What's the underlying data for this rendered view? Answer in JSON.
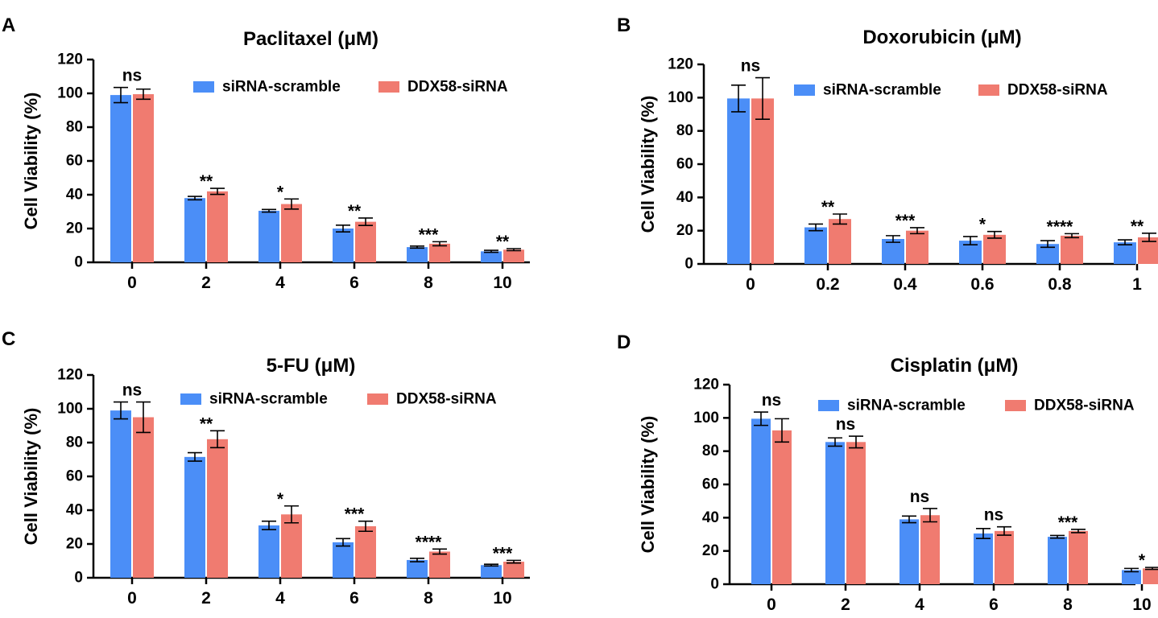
{
  "colors": {
    "scramble": "#4b8ef7",
    "ddx58": "#f07b70",
    "axis": "#000000"
  },
  "chart_data": [
    {
      "panel": "A",
      "type": "bar",
      "title": "Paclitaxel (μM)",
      "ylabel": "Cell Viability (%)",
      "xlabel": "",
      "ylim": [
        0,
        120
      ],
      "yticks": [
        0,
        20,
        40,
        60,
        80,
        100,
        120
      ],
      "categories": [
        "0",
        "2",
        "4",
        "6",
        "8",
        "10"
      ],
      "legend": [
        "siRNA-scramble",
        "DDX58-siRNA"
      ],
      "series": [
        {
          "name": "siRNA-scramble",
          "values": [
            99,
            38,
            30.5,
            20,
            9,
            6.5
          ],
          "errors": [
            4.5,
            1,
            0.8,
            2,
            0.6,
            0.6
          ]
        },
        {
          "name": "DDX58-siRNA",
          "values": [
            99.5,
            42,
            34.5,
            24,
            11,
            7.5
          ],
          "errors": [
            3,
            1.8,
            3,
            2.2,
            1.2,
            0.6
          ]
        }
      ],
      "significance": [
        "ns",
        "**",
        "*",
        "**",
        "***",
        "**"
      ]
    },
    {
      "panel": "B",
      "type": "bar",
      "title": "Doxorubicin (μM)",
      "ylabel": "Cell Viability (%)",
      "xlabel": "",
      "ylim": [
        0,
        120
      ],
      "yticks": [
        0,
        20,
        40,
        60,
        80,
        100,
        120
      ],
      "categories": [
        "0",
        "0.2",
        "0.4",
        "0.6",
        "0.8",
        "1"
      ],
      "legend": [
        "siRNA-scramble",
        "DDX58-siRNA"
      ],
      "series": [
        {
          "name": "siRNA-scramble",
          "values": [
            99.5,
            22,
            15,
            14,
            12,
            13
          ],
          "errors": [
            8,
            2,
            2,
            2.5,
            2,
            1.5
          ]
        },
        {
          "name": "DDX58-siRNA",
          "values": [
            99.5,
            27,
            20,
            17.5,
            17,
            16
          ],
          "errors": [
            12.5,
            3,
            1.8,
            2,
            1.2,
            2.5
          ]
        }
      ],
      "significance": [
        "ns",
        "**",
        "***",
        "*",
        "****",
        "**"
      ]
    },
    {
      "panel": "C",
      "type": "bar",
      "title": "5-FU (μM)",
      "ylabel": "Cell Viability (%)",
      "xlabel": "",
      "ylim": [
        0,
        120
      ],
      "yticks": [
        0,
        20,
        40,
        60,
        80,
        100,
        120
      ],
      "categories": [
        "0",
        "2",
        "4",
        "6",
        "8",
        "10"
      ],
      "legend": [
        "siRNA-scramble",
        "DDX58-siRNA"
      ],
      "series": [
        {
          "name": "siRNA-scramble",
          "values": [
            99,
            71.5,
            31,
            21,
            10.5,
            7.5
          ],
          "errors": [
            5,
            2.5,
            2.5,
            2.2,
            1,
            0.5
          ]
        },
        {
          "name": "DDX58-siRNA",
          "values": [
            95,
            82,
            37.5,
            30.5,
            15.5,
            9.5
          ],
          "errors": [
            9,
            5,
            5,
            3,
            1.5,
            0.8
          ]
        }
      ],
      "significance": [
        "ns",
        "**",
        "*",
        "***",
        "****",
        "***"
      ]
    },
    {
      "panel": "D",
      "type": "bar",
      "title": "Cisplatin (μM)",
      "ylabel": "Cell Viability (%)",
      "xlabel": "",
      "ylim": [
        0,
        120
      ],
      "yticks": [
        0,
        20,
        40,
        60,
        80,
        100,
        120
      ],
      "categories": [
        "0",
        "2",
        "4",
        "6",
        "8",
        "10"
      ],
      "legend": [
        "siRNA-scramble",
        "DDX58-siRNA"
      ],
      "series": [
        {
          "name": "siRNA-scramble",
          "values": [
            99.5,
            85.5,
            39,
            30.5,
            28.5,
            8.5
          ],
          "errors": [
            4,
            2.5,
            2,
            3,
            0.8,
            1
          ]
        },
        {
          "name": "DDX58-siRNA",
          "values": [
            92.5,
            85.5,
            41.5,
            32,
            32,
            9.5
          ],
          "errors": [
            7,
            3.5,
            4,
            2.5,
            1,
            0.6
          ]
        }
      ],
      "significance": [
        "ns",
        "ns",
        "ns",
        "ns",
        "***",
        "*"
      ]
    }
  ]
}
